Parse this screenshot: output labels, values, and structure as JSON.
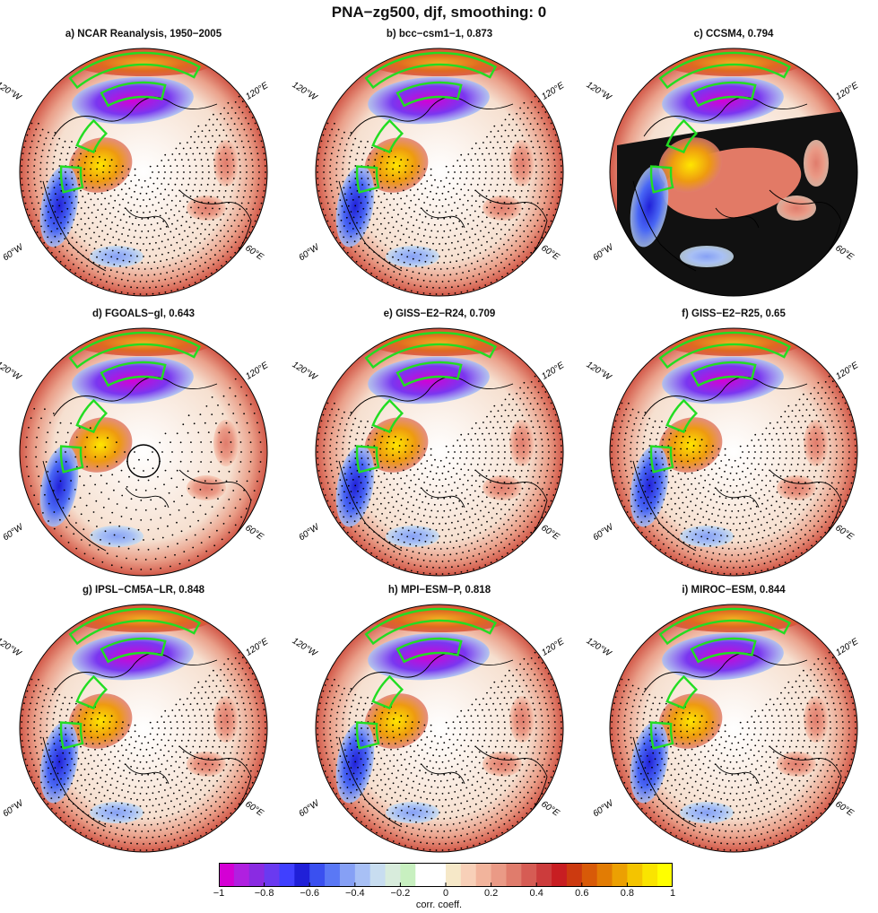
{
  "title": "PNA−zg500, djf, smoothing: 0",
  "panels": [
    {
      "label": "a) NCAR Reanalysis, 1950−2005",
      "style": "obs"
    },
    {
      "label": "b) bcc−csm1−1, 0.873",
      "style": "dotted"
    },
    {
      "label": "c) CCSM4, 0.794",
      "style": "dense"
    },
    {
      "label": "d) FGOALS−gl, 0.643",
      "style": "coarse"
    },
    {
      "label": "e) GISS−E2−R24, 0.709",
      "style": "dotted"
    },
    {
      "label": "f) GISS−E2−R25, 0.65",
      "style": "dotted"
    },
    {
      "label": "g) IPSL−CM5A−LR, 0.848",
      "style": "dotted"
    },
    {
      "label": "h) MPI−ESM−P, 0.818",
      "style": "dotted"
    },
    {
      "label": "i) MIROC−ESM, 0.844",
      "style": "dotted"
    }
  ],
  "lon_labels": {
    "w120": "120°W",
    "e120": "120°E",
    "w60": "60°W",
    "e60": "60°E"
  },
  "colorbar": {
    "label": "corr. coeff.",
    "ticks": [
      "−1",
      "−0.8",
      "−0.6",
      "−0.4",
      "−0.2",
      "0",
      "0.2",
      "0.4",
      "0.6",
      "0.8",
      "1"
    ],
    "tick_values": [
      -1,
      -0.8,
      -0.6,
      -0.4,
      -0.2,
      0,
      0.2,
      0.4,
      0.6,
      0.8,
      1
    ],
    "colors": [
      "#d400d4",
      "#b020e0",
      "#8a2be2",
      "#6a3af0",
      "#4040ff",
      "#2020d8",
      "#3a50f0",
      "#5a78f5",
      "#86a0f5",
      "#a8c0f5",
      "#c8ddf0",
      "#d8ecdc",
      "#c8f0c0",
      "#ffffff",
      "#ffffff",
      "#f6e8c8",
      "#f8d0b8",
      "#f2b49c",
      "#ea9a86",
      "#e07c6c",
      "#d65c54",
      "#cc3c3c",
      "#c81e22",
      "#cc3a10",
      "#d85a08",
      "#e27c04",
      "#eca002",
      "#f4c400",
      "#fae400",
      "#ffff00"
    ]
  },
  "chart_data": {
    "type": "heatmap",
    "title": "PNA−zg500, djf, smoothing: 0",
    "colorbar_label": "corr. coeff.",
    "range": [
      -1,
      1
    ],
    "panels": [
      {
        "name": "NCAR Reanalysis, 1950−2005",
        "pattern_correlation": null
      },
      {
        "name": "bcc−csm1−1",
        "pattern_correlation": 0.873
      },
      {
        "name": "CCSM4",
        "pattern_correlation": 0.794
      },
      {
        "name": "FGOALS−gl",
        "pattern_correlation": 0.643
      },
      {
        "name": "GISS−E2−R24",
        "pattern_correlation": 0.709
      },
      {
        "name": "GISS−E2−R25",
        "pattern_correlation": 0.65
      },
      {
        "name": "IPSL−CM5A−LR",
        "pattern_correlation": 0.848
      },
      {
        "name": "MPI−ESM−P",
        "pattern_correlation": 0.818
      },
      {
        "name": "MIROC−ESM",
        "pattern_correlation": 0.844
      }
    ]
  }
}
